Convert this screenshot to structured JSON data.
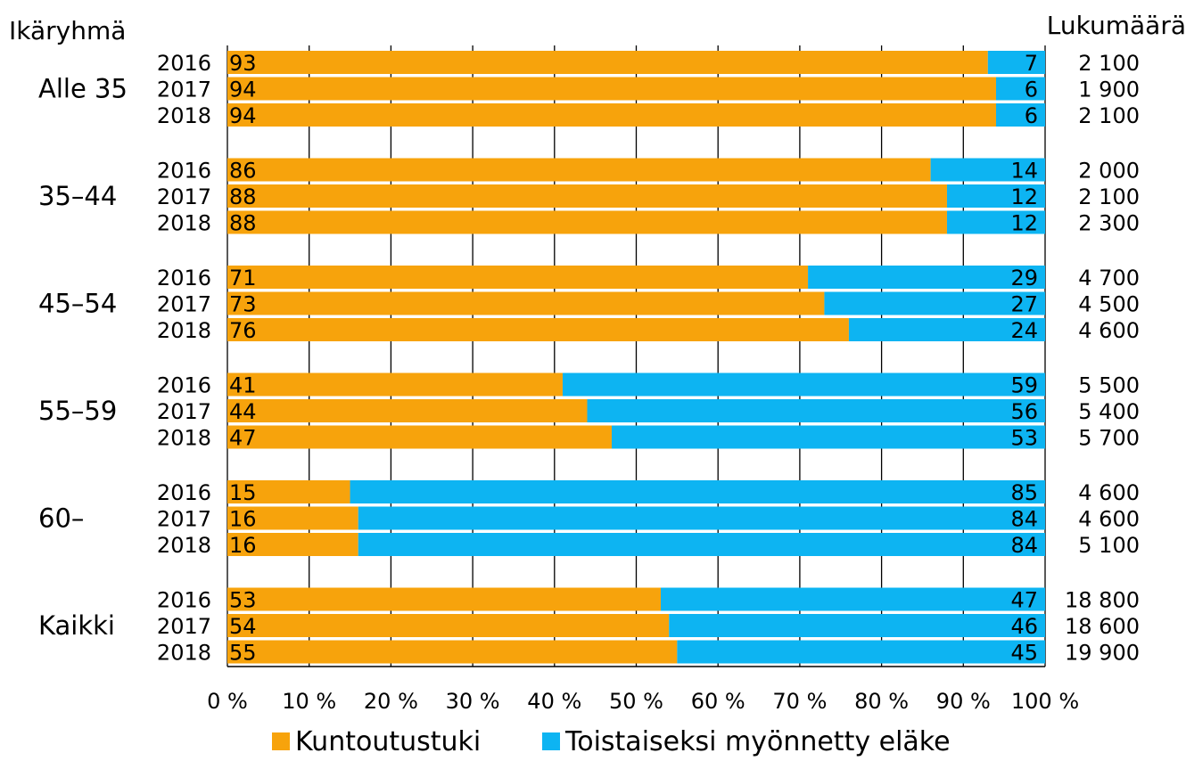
{
  "chart_data": {
    "type": "bar",
    "orientation": "horizontal",
    "stacked": "percent",
    "left_header": "Ikäryhmä",
    "right_header": "Lukumäärä",
    "groups": [
      {
        "label": "Alle 35",
        "rows": [
          {
            "year": "2016",
            "values": [
              93,
              7
            ],
            "count": "2 100"
          },
          {
            "year": "2017",
            "values": [
              94,
              6
            ],
            "count": "1 900"
          },
          {
            "year": "2018",
            "values": [
              94,
              6
            ],
            "count": "2 100"
          }
        ]
      },
      {
        "label": "35–44",
        "rows": [
          {
            "year": "2016",
            "values": [
              86,
              14
            ],
            "count": "2 000"
          },
          {
            "year": "2017",
            "values": [
              88,
              12
            ],
            "count": "2 100"
          },
          {
            "year": "2018",
            "values": [
              88,
              12
            ],
            "count": "2 300"
          }
        ]
      },
      {
        "label": "45–54",
        "rows": [
          {
            "year": "2016",
            "values": [
              71,
              29
            ],
            "count": "4 700"
          },
          {
            "year": "2017",
            "values": [
              73,
              27
            ],
            "count": "4 500"
          },
          {
            "year": "2018",
            "values": [
              76,
              24
            ],
            "count": "4 600"
          }
        ]
      },
      {
        "label": "55–59",
        "rows": [
          {
            "year": "2016",
            "values": [
              41,
              59
            ],
            "count": "5 500"
          },
          {
            "year": "2017",
            "values": [
              44,
              56
            ],
            "count": "5 400"
          },
          {
            "year": "2018",
            "values": [
              47,
              53
            ],
            "count": "5 700"
          }
        ]
      },
      {
        "label": "60–",
        "rows": [
          {
            "year": "2016",
            "values": [
              15,
              85
            ],
            "count": "4 600"
          },
          {
            "year": "2017",
            "values": [
              16,
              84
            ],
            "count": "4 600"
          },
          {
            "year": "2018",
            "values": [
              16,
              84
            ],
            "count": "5 100"
          }
        ]
      },
      {
        "label": "Kaikki",
        "rows": [
          {
            "year": "2016",
            "values": [
              53,
              47
            ],
            "count": "18 800"
          },
          {
            "year": "2017",
            "values": [
              54,
              46
            ],
            "count": "18 600"
          },
          {
            "year": "2018",
            "values": [
              55,
              45
            ],
            "count": "19 900"
          }
        ]
      }
    ],
    "series": [
      {
        "name": "Kuntoutustuki",
        "color": "#f7a30c"
      },
      {
        "name": "Toistaiseksi myönnetty eläke",
        "color": "#0db4f2"
      }
    ],
    "x_ticks": [
      "0 %",
      "10 %",
      "20 %",
      "30 %",
      "40 %",
      "50 %",
      "60 %",
      "70 %",
      "80 %",
      "90 %",
      "100 %"
    ],
    "xlim": [
      0,
      100
    ],
    "grid": "vertical",
    "legend_position": "bottom"
  }
}
